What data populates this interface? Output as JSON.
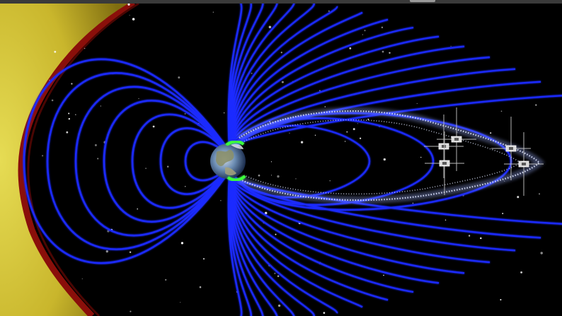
{
  "scene": {
    "subject": "magnetosphere-illustration",
    "colors": {
      "space": "#000000",
      "field_line": "#1a2cff",
      "field_line_glow": "#3b55ff",
      "plasma_sheet": "#cfd8ff",
      "bow_shock_red": "#8a0f0a",
      "solar_wind_yellow": "#d9c938",
      "earth_ocean": "#3b6ea8",
      "earth_land": "#8a8f6a",
      "aurora": "#3cff3c",
      "spacecraft": "#d8d8d8",
      "top_strip": "#3a3a3a"
    },
    "icons": [
      "earth-icon",
      "spacecraft-icon"
    ]
  }
}
